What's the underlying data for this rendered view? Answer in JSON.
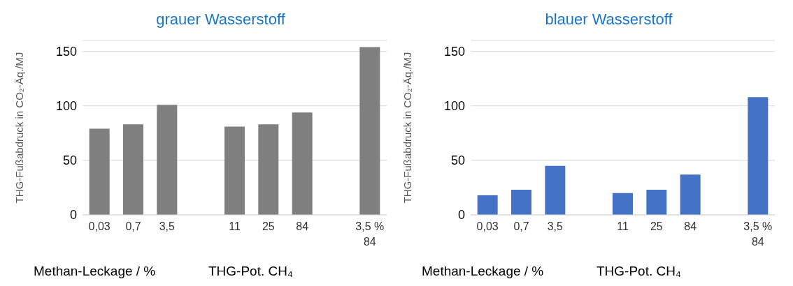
{
  "chart_data": [
    {
      "type": "bar",
      "title": "grauer Wasserstoff",
      "ylabel": "THG-Fußabdruck in CO₂-Äq./MJ",
      "xlabel": "Methan-Leckage / %",
      "annotations": [
        "THG-Pot. CH₄"
      ],
      "categories": [
        "0,03",
        "0,7",
        "3,5",
        null,
        "11",
        "25",
        "84",
        null,
        "3,5 %\n84"
      ],
      "values": [
        79,
        83,
        101,
        null,
        81,
        83,
        94,
        null,
        154
      ],
      "color": "#7f7f7f",
      "ylim": [
        0,
        160
      ],
      "yticks": [
        0,
        50,
        100,
        150
      ],
      "grid": "y"
    },
    {
      "type": "bar",
      "title": "blauer Wasserstoff",
      "ylabel": "THG-Fußabdruck in CO₂-Äq./MJ",
      "xlabel": "Methan-Leckage / %",
      "annotations": [
        "THG-Pot. CH₄"
      ],
      "categories": [
        "0,03",
        "0,7",
        "3,5",
        null,
        "11",
        "25",
        "84",
        null,
        "3,5 %\n84"
      ],
      "values": [
        18,
        23,
        45,
        null,
        20,
        23,
        37,
        null,
        108
      ],
      "color": "#4472c4",
      "ylim": [
        0,
        160
      ],
      "yticks": [
        0,
        50,
        100,
        150
      ],
      "grid": "y"
    }
  ]
}
